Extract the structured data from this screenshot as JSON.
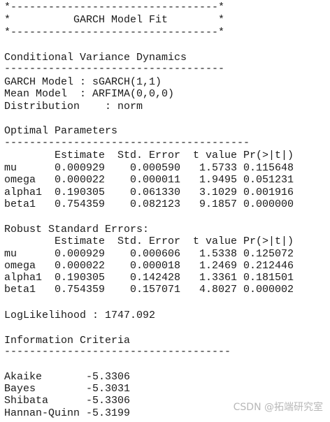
{
  "banner": {
    "top": "*---------------------------------*",
    "edge": "*",
    "title": "GARCH Model Fit",
    "bottom": "*---------------------------------*"
  },
  "conditional_variance": {
    "heading": "Conditional Variance Dynamics",
    "rule": "-----------------------------------",
    "lines": [
      "GARCH Model : sGARCH(1,1)",
      "Mean Model  : ARFIMA(0,0,0)",
      "Distribution    : norm"
    ]
  },
  "optimal_parameters": {
    "heading": "Optimal Parameters",
    "rule": "---------------------------------------",
    "columns": [
      "Estimate",
      "Std. Error",
      "t value",
      "Pr(>|t|)"
    ],
    "rows": [
      [
        "mu",
        "0.000929",
        "0.000590",
        "1.5733",
        "0.115648"
      ],
      [
        "omega",
        "0.000022",
        "0.000011",
        "1.9495",
        "0.051231"
      ],
      [
        "alpha1",
        "0.190305",
        "0.061330",
        "3.1029",
        "0.001916"
      ],
      [
        "beta1",
        "0.754359",
        "0.082123",
        "9.1857",
        "0.000000"
      ]
    ]
  },
  "robust_standard_errors": {
    "heading": "Robust Standard Errors:",
    "columns": [
      "Estimate",
      "Std. Error",
      "t value",
      "Pr(>|t|)"
    ],
    "rows": [
      [
        "mu",
        "0.000929",
        "0.000606",
        "1.5338",
        "0.125072"
      ],
      [
        "omega",
        "0.000022",
        "0.000018",
        "1.2469",
        "0.212446"
      ],
      [
        "alpha1",
        "0.190305",
        "0.142428",
        "1.3361",
        "0.181501"
      ],
      [
        "beta1",
        "0.754359",
        "0.157071",
        "4.8027",
        "0.000002"
      ]
    ]
  },
  "log_likelihood": "LogLikelihood : 1747.092",
  "information_criteria": {
    "heading": "Information Criteria",
    "rule": "------------------------------------",
    "rows": [
      [
        "Akaike",
        "-5.3306"
      ],
      [
        "Bayes",
        "-5.3031"
      ],
      [
        "Shibata",
        "-5.3306"
      ],
      [
        "Hannan-Quinn",
        "-5.3199"
      ]
    ]
  },
  "watermark": "CSDN @拓端研究室"
}
